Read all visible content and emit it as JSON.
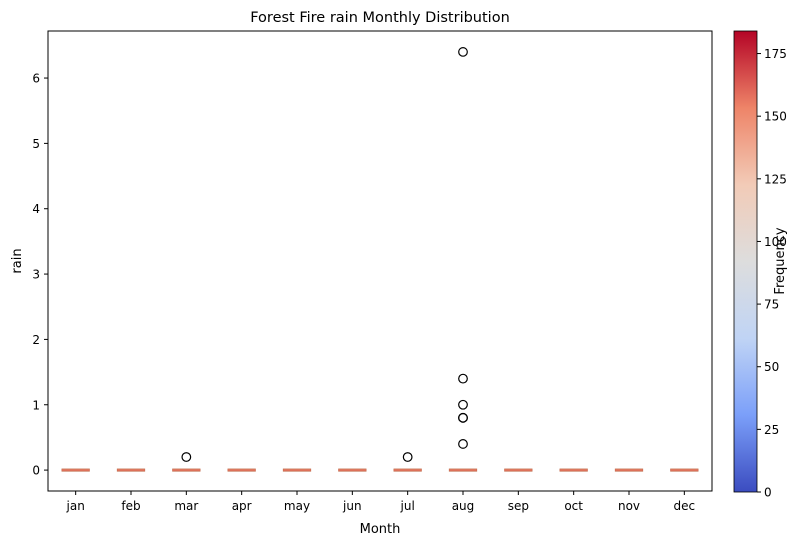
{
  "chart_data": {
    "type": "box",
    "title": "Forest Fire rain Monthly Distribution",
    "xlabel": "Month",
    "ylabel": "rain",
    "categories": [
      "jan",
      "feb",
      "mar",
      "apr",
      "may",
      "jun",
      "jul",
      "aug",
      "sep",
      "oct",
      "nov",
      "dec"
    ],
    "ylim": [
      -0.32,
      6.72
    ],
    "yticks": [
      0,
      1,
      2,
      3,
      4,
      5,
      6
    ],
    "boxes": [
      {
        "month": "jan",
        "q1": 0,
        "median": 0,
        "q3": 0,
        "whisker_low": 0,
        "whisker_high": 0,
        "outliers": []
      },
      {
        "month": "feb",
        "q1": 0,
        "median": 0,
        "q3": 0,
        "whisker_low": 0,
        "whisker_high": 0,
        "outliers": []
      },
      {
        "month": "mar",
        "q1": 0,
        "median": 0,
        "q3": 0,
        "whisker_low": 0,
        "whisker_high": 0,
        "outliers": [
          0.2
        ]
      },
      {
        "month": "apr",
        "q1": 0,
        "median": 0,
        "q3": 0,
        "whisker_low": 0,
        "whisker_high": 0,
        "outliers": []
      },
      {
        "month": "may",
        "q1": 0,
        "median": 0,
        "q3": 0,
        "whisker_low": 0,
        "whisker_high": 0,
        "outliers": []
      },
      {
        "month": "jun",
        "q1": 0,
        "median": 0,
        "q3": 0,
        "whisker_low": 0,
        "whisker_high": 0,
        "outliers": []
      },
      {
        "month": "jul",
        "q1": 0,
        "median": 0,
        "q3": 0,
        "whisker_low": 0,
        "whisker_high": 0,
        "outliers": [
          0.2
        ]
      },
      {
        "month": "aug",
        "q1": 0,
        "median": 0,
        "q3": 0,
        "whisker_low": 0,
        "whisker_high": 0,
        "outliers": [
          0.4,
          0.8,
          0.8,
          1.0,
          1.4,
          6.4
        ]
      },
      {
        "month": "sep",
        "q1": 0,
        "median": 0,
        "q3": 0,
        "whisker_low": 0,
        "whisker_high": 0,
        "outliers": []
      },
      {
        "month": "oct",
        "q1": 0,
        "median": 0,
        "q3": 0,
        "whisker_low": 0,
        "whisker_high": 0,
        "outliers": []
      },
      {
        "month": "nov",
        "q1": 0,
        "median": 0,
        "q3": 0,
        "whisker_low": 0,
        "whisker_high": 0,
        "outliers": []
      },
      {
        "month": "dec",
        "q1": 0,
        "median": 0,
        "q3": 0,
        "whisker_low": 0,
        "whisker_high": 0,
        "outliers": []
      }
    ],
    "colorbar": {
      "label": "Frequency",
      "colormap": "coolwarm",
      "range": [
        0,
        184
      ],
      "ticks": [
        0,
        25,
        50,
        75,
        100,
        125,
        150,
        175
      ]
    },
    "colors": {
      "box": "#f4a582",
      "median": "#d6604d",
      "outlier": "#000000",
      "cmap_stops": [
        "#3b4cc0",
        "#7b9ff9",
        "#c0d4f5",
        "#dddddd",
        "#f2cbb7",
        "#ee8468",
        "#b40426"
      ]
    },
    "grid": false,
    "legend": "none"
  }
}
